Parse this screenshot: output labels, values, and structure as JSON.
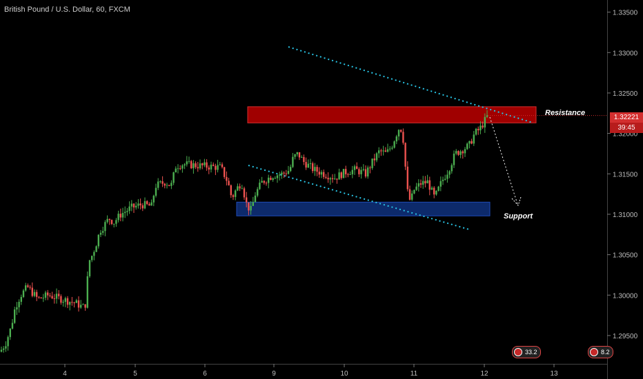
{
  "header": {
    "symbol": "British Pound / U.S. Dollar, 60, FXCM"
  },
  "annotations": {
    "resistance": "Resistance",
    "support": "Support"
  },
  "price_tag": {
    "price": "1.32221",
    "countdown": "39:45"
  },
  "events": [
    {
      "label": "33.2"
    },
    {
      "label": "8.2"
    }
  ],
  "colors": {
    "background": "#000000",
    "up": "#4caf50",
    "down": "#ef5350",
    "resistance_zone": "#a00000",
    "support_zone": "#0d2a6b",
    "trendline": "#29c5e6",
    "axis_text": "#bdbdbd"
  },
  "chart_data": {
    "type": "candlestick",
    "title": "British Pound / U.S. Dollar, 60, FXCM",
    "x_ticks": [
      "4",
      "5",
      "6",
      "9",
      "10",
      "11",
      "12",
      "13"
    ],
    "y_ticks": [
      "1.33500",
      "1.33000",
      "1.32500",
      "1.32000",
      "1.31500",
      "1.31000",
      "1.30500",
      "1.30000",
      "1.29500"
    ],
    "ylim": [
      1.2915,
      1.3365
    ],
    "series": [
      {
        "name": "price_path",
        "values": [
          [
            0,
            1.293
          ],
          [
            8,
            1.294
          ],
          [
            16,
            1.296
          ],
          [
            22,
            1.2985
          ],
          [
            30,
            1.3
          ],
          [
            40,
            1.301
          ],
          [
            55,
            1.2995
          ],
          [
            70,
            1.3
          ],
          [
            90,
            1.2995
          ],
          [
            110,
            1.299
          ],
          [
            120,
            1.2985
          ],
          [
            125,
            1.299
          ],
          [
            128,
            1.304
          ],
          [
            134,
            1.305
          ],
          [
            140,
            1.3065
          ],
          [
            145,
            1.308
          ],
          [
            150,
            1.3085
          ],
          [
            158,
            1.3095
          ],
          [
            165,
            1.309
          ],
          [
            175,
            1.31
          ],
          [
            190,
            1.3108
          ],
          [
            205,
            1.3112
          ],
          [
            220,
            1.311
          ],
          [
            225,
            1.3135
          ],
          [
            240,
            1.314
          ],
          [
            248,
            1.3135
          ],
          [
            255,
            1.316
          ],
          [
            265,
            1.3162
          ],
          [
            290,
            1.316
          ],
          [
            320,
            1.3158
          ],
          [
            330,
            1.314
          ],
          [
            336,
            1.312
          ],
          [
            342,
            1.313
          ],
          [
            350,
            1.314
          ],
          [
            358,
            1.311
          ],
          [
            364,
            1.3105
          ],
          [
            370,
            1.3125
          ],
          [
            380,
            1.314
          ],
          [
            395,
            1.3148
          ],
          [
            410,
            1.315
          ],
          [
            420,
            1.3155
          ],
          [
            425,
            1.317
          ],
          [
            432,
            1.3175
          ],
          [
            440,
            1.3165
          ],
          [
            455,
            1.3155
          ],
          [
            470,
            1.315
          ],
          [
            485,
            1.3145
          ],
          [
            500,
            1.3152
          ],
          [
            515,
            1.3155
          ],
          [
            530,
            1.315
          ],
          [
            540,
            1.3165
          ],
          [
            550,
            1.3178
          ],
          [
            560,
            1.3175
          ],
          [
            568,
            1.3185
          ],
          [
            575,
            1.32
          ],
          [
            580,
            1.321
          ],
          [
            585,
            1.319
          ],
          [
            590,
            1.313
          ],
          [
            595,
            1.3115
          ],
          [
            600,
            1.313
          ],
          [
            610,
            1.3138
          ],
          [
            620,
            1.314
          ],
          [
            630,
            1.312
          ],
          [
            640,
            1.314
          ],
          [
            650,
            1.3155
          ],
          [
            660,
            1.3175
          ],
          [
            670,
            1.318
          ],
          [
            680,
            1.3185
          ],
          [
            688,
            1.32
          ],
          [
            695,
            1.3205
          ],
          [
            700,
            1.3212
          ],
          [
            707,
            1.3222
          ]
        ]
      }
    ],
    "resistance_zone": [
      1.3213,
      1.3233
    ],
    "support_zone": [
      1.3098,
      1.3115
    ]
  }
}
